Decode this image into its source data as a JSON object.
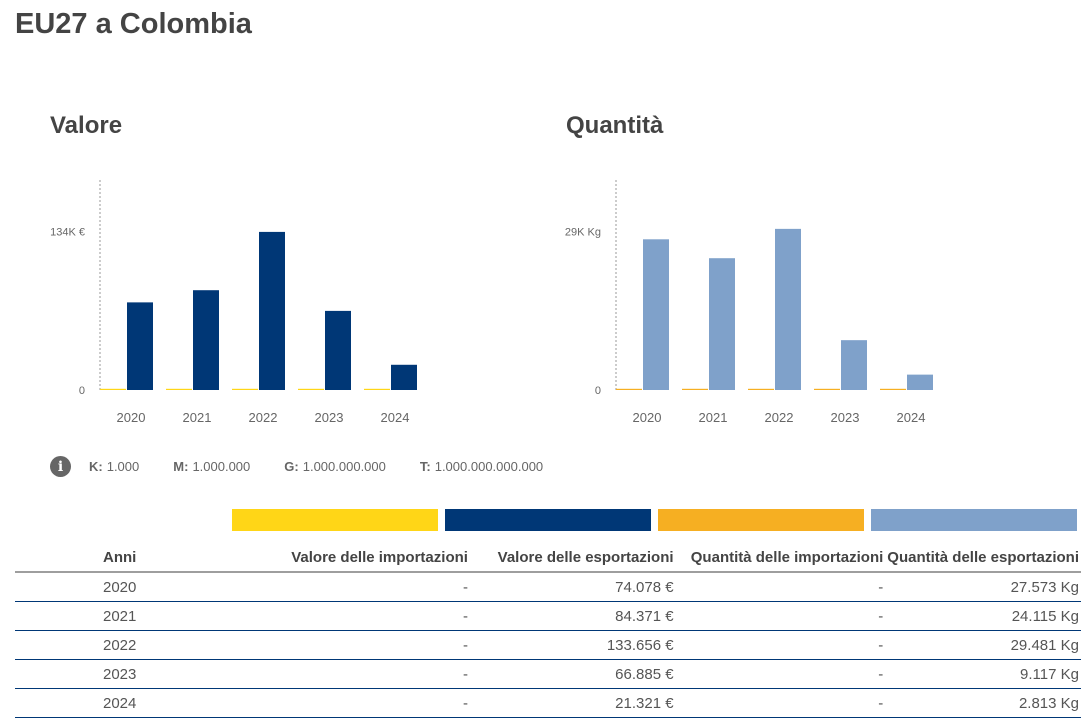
{
  "page": {
    "title": "EU27 a Colombia"
  },
  "colors": {
    "import_value": "#FFD617",
    "export_value": "#003776",
    "import_quantity": "#F6AF22",
    "export_quantity": "#7FA1CA"
  },
  "chart_data": [
    {
      "type": "bar",
      "title": "Valore",
      "categories": [
        "2020",
        "2021",
        "2022",
        "2023",
        "2024"
      ],
      "series": [
        {
          "name": "Valore delle importazioni",
          "values": [
            0,
            0,
            0,
            0,
            0
          ],
          "color": "#FFD617"
        },
        {
          "name": "Valore delle esportazioni",
          "values": [
            74078,
            84371,
            133656,
            66885,
            21321
          ],
          "color": "#003776"
        }
      ],
      "ytick_labels": [
        "0",
        "134K €"
      ],
      "yticks": [
        0,
        134000
      ],
      "ylim": [
        0,
        134000
      ],
      "xlabel": "",
      "ylabel": "",
      "grid": false
    },
    {
      "type": "bar",
      "title": "Quantità",
      "categories": [
        "2020",
        "2021",
        "2022",
        "2023",
        "2024"
      ],
      "series": [
        {
          "name": "Quantità delle importazioni",
          "values": [
            0,
            0,
            0,
            0,
            0
          ],
          "color": "#F6AF22"
        },
        {
          "name": "Quantità delle esportazioni",
          "values": [
            27573,
            24115,
            29481,
            9117,
            2813
          ],
          "color": "#7FA1CA"
        }
      ],
      "ytick_labels": [
        "0",
        "29K Kg"
      ],
      "yticks": [
        0,
        29000
      ],
      "ylim": [
        0,
        29000
      ],
      "xlabel": "",
      "ylabel": "",
      "grid": false
    }
  ],
  "units_legend": {
    "icon": "info-icon",
    "items": [
      {
        "key": "K:",
        "value": "1.000"
      },
      {
        "key": "M:",
        "value": "1.000.000"
      },
      {
        "key": "G:",
        "value": "1.000.000.000"
      },
      {
        "key": "T:",
        "value": "1.000.000.000.000"
      }
    ]
  },
  "table": {
    "headers": [
      "Anni",
      "Valore delle importazioni",
      "Valore delle esportazioni",
      "Quantità delle importazioni",
      "Quantità delle esportazioni"
    ],
    "rows": [
      [
        "2020",
        "-",
        "74.078 €",
        "-",
        "27.573 Kg"
      ],
      [
        "2021",
        "-",
        "84.371 €",
        "-",
        "24.115 Kg"
      ],
      [
        "2022",
        "-",
        "133.656 €",
        "-",
        "29.481 Kg"
      ],
      [
        "2023",
        "-",
        "66.885 €",
        "-",
        "9.117 Kg"
      ],
      [
        "2024",
        "-",
        "21.321 €",
        "-",
        "2.813 Kg"
      ]
    ]
  }
}
